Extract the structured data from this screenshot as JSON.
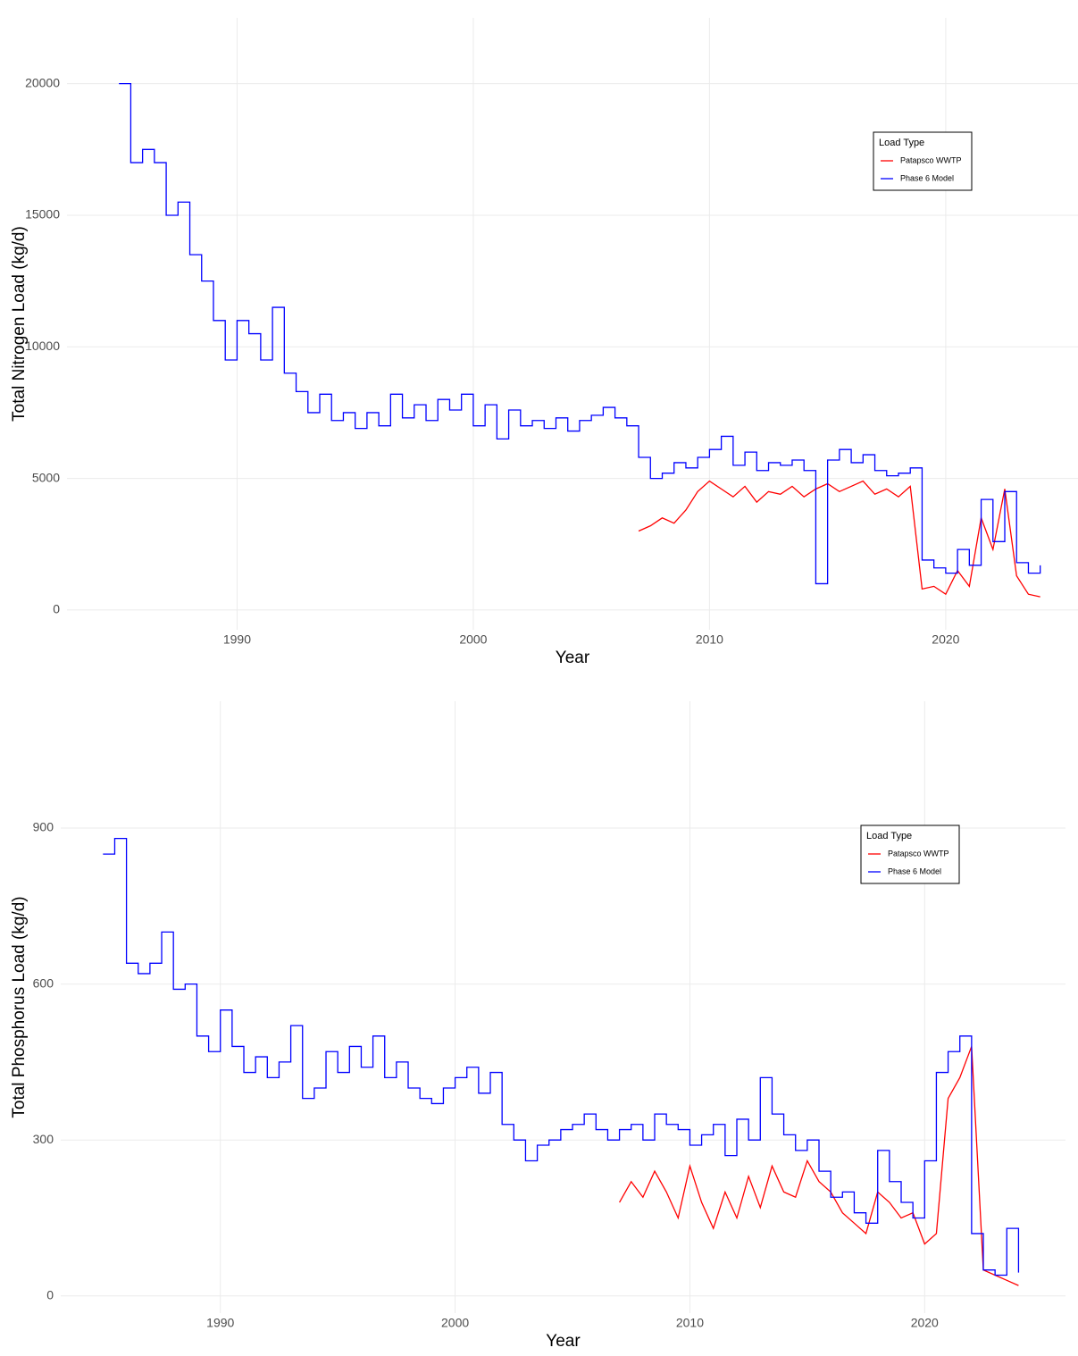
{
  "chart_data": [
    {
      "type": "line",
      "x_label": "Year",
      "y_label": "Total Nitrogen Load (kg/d)",
      "legend_title": "Load Type",
      "legend": "top-right",
      "grid": true,
      "line_shape": "step",
      "xlim": [
        1982.8,
        2025.6
      ],
      "xticks": [
        1990,
        2000,
        2010,
        2020
      ],
      "ylim": [
        -750,
        22500
      ],
      "yticks": [
        0,
        5000,
        10000,
        15000,
        20000
      ],
      "x": [
        1985,
        1985.5,
        1986,
        1986.5,
        1987,
        1987.5,
        1988,
        1988.5,
        1989,
        1989.5,
        1990,
        1990.5,
        1991,
        1991.5,
        1992,
        1992.5,
        1993,
        1993.5,
        1994,
        1994.5,
        1995,
        1995.5,
        1996,
        1996.5,
        1997,
        1997.5,
        1998,
        1998.5,
        1999,
        1999.5,
        2000,
        2000.5,
        2001,
        2001.5,
        2002,
        2002.5,
        2003,
        2003.5,
        2004,
        2004.5,
        2005,
        2005.5,
        2006,
        2006.5,
        2007,
        2007.5,
        2008,
        2008.5,
        2009,
        2009.5,
        2010,
        2010.5,
        2011,
        2011.5,
        2012,
        2012.5,
        2013,
        2013.5,
        2014,
        2014.5,
        2015,
        2015.5,
        2016,
        2016.5,
        2017,
        2017.5,
        2018,
        2018.5,
        2019,
        2019.5,
        2020,
        2020.5,
        2021,
        2021.5,
        2022,
        2022.5,
        2023,
        2023.5,
        2024
      ],
      "series": [
        {
          "name": "Patapsco WWTP",
          "color": "#ff0000",
          "shape": "linear",
          "values": [
            null,
            null,
            null,
            null,
            null,
            null,
            null,
            null,
            null,
            null,
            null,
            null,
            null,
            null,
            null,
            null,
            null,
            null,
            null,
            null,
            null,
            null,
            null,
            null,
            null,
            null,
            null,
            null,
            null,
            null,
            null,
            null,
            null,
            null,
            null,
            null,
            null,
            null,
            null,
            null,
            null,
            null,
            null,
            null,
            3000,
            3200,
            3500,
            3300,
            3800,
            4500,
            4900,
            4600,
            4300,
            4700,
            4100,
            4500,
            4400,
            4700,
            4300,
            4600,
            4800,
            4500,
            4700,
            4900,
            4400,
            4600,
            4300,
            4700,
            800,
            900,
            600,
            1500,
            900,
            3500,
            2300,
            4600,
            1300,
            600,
            500
          ]
        },
        {
          "name": "Phase 6 Model",
          "color": "#0000ff",
          "shape": "step",
          "values": [
            20000,
            17000,
            17500,
            17000,
            15000,
            15500,
            13500,
            12500,
            11000,
            9500,
            11000,
            10500,
            9500,
            11500,
            9000,
            8300,
            7500,
            8200,
            7200,
            7500,
            6900,
            7500,
            7000,
            8200,
            7300,
            7800,
            7200,
            8000,
            7600,
            8200,
            7000,
            7800,
            6500,
            7600,
            7000,
            7200,
            6900,
            7300,
            6800,
            7200,
            7400,
            7700,
            7300,
            7000,
            5800,
            5000,
            5200,
            5600,
            5400,
            5800,
            6100,
            6600,
            5500,
            6000,
            5300,
            5600,
            5500,
            5700,
            5300,
            1000,
            5700,
            6100,
            5600,
            5900,
            5300,
            5100,
            5200,
            5400,
            1900,
            1600,
            1400,
            2300,
            1700,
            4200,
            2600,
            4500,
            1800,
            1400,
            1700
          ]
        }
      ]
    },
    {
      "type": "line",
      "x_label": "Year",
      "y_label": "Total Phosphorus Load (kg/d)",
      "legend_title": "Load Type",
      "legend": "top-right",
      "grid": true,
      "line_shape": "step",
      "xlim": [
        1983.2,
        2026.0
      ],
      "xticks": [
        1990,
        2000,
        2010,
        2020
      ],
      "ylim": [
        -33,
        1144
      ],
      "yticks": [
        0,
        300,
        600,
        900
      ],
      "x": [
        1985,
        1985.5,
        1986,
        1986.5,
        1987,
        1987.5,
        1988,
        1988.5,
        1989,
        1989.5,
        1990,
        1990.5,
        1991,
        1991.5,
        1992,
        1992.5,
        1993,
        1993.5,
        1994,
        1994.5,
        1995,
        1995.5,
        1996,
        1996.5,
        1997,
        1997.5,
        1998,
        1998.5,
        1999,
        1999.5,
        2000,
        2000.5,
        2001,
        2001.5,
        2002,
        2002.5,
        2003,
        2003.5,
        2004,
        2004.5,
        2005,
        2005.5,
        2006,
        2006.5,
        2007,
        2007.5,
        2008,
        2008.5,
        2009,
        2009.5,
        2010,
        2010.5,
        2011,
        2011.5,
        2012,
        2012.5,
        2013,
        2013.5,
        2014,
        2014.5,
        2015,
        2015.5,
        2016,
        2016.5,
        2017,
        2017.5,
        2018,
        2018.5,
        2019,
        2019.5,
        2020,
        2020.5,
        2021,
        2021.5,
        2022,
        2022.5,
        2023,
        2023.5,
        2024
      ],
      "series": [
        {
          "name": "Patapsco WWTP",
          "color": "#ff0000",
          "shape": "linear",
          "values": [
            null,
            null,
            null,
            null,
            null,
            null,
            null,
            null,
            null,
            null,
            null,
            null,
            null,
            null,
            null,
            null,
            null,
            null,
            null,
            null,
            null,
            null,
            null,
            null,
            null,
            null,
            null,
            null,
            null,
            null,
            null,
            null,
            null,
            null,
            null,
            null,
            null,
            null,
            null,
            null,
            null,
            null,
            null,
            null,
            180,
            220,
            190,
            240,
            200,
            150,
            250,
            180,
            130,
            200,
            150,
            230,
            170,
            250,
            200,
            190,
            260,
            220,
            200,
            160,
            140,
            120,
            200,
            180,
            150,
            160,
            100,
            120,
            380,
            420,
            480,
            50,
            40,
            30,
            20
          ]
        },
        {
          "name": "Phase 6 Model",
          "color": "#0000ff",
          "shape": "step",
          "values": [
            850,
            880,
            640,
            620,
            640,
            700,
            590,
            600,
            500,
            470,
            550,
            480,
            430,
            460,
            420,
            450,
            520,
            380,
            400,
            470,
            430,
            480,
            440,
            500,
            420,
            450,
            400,
            380,
            370,
            400,
            420,
            440,
            390,
            430,
            330,
            300,
            260,
            290,
            300,
            320,
            330,
            350,
            320,
            300,
            320,
            330,
            300,
            350,
            330,
            320,
            290,
            310,
            330,
            270,
            340,
            300,
            420,
            350,
            310,
            280,
            300,
            240,
            190,
            200,
            160,
            140,
            280,
            220,
            180,
            150,
            260,
            430,
            470,
            500,
            120,
            50,
            40,
            130,
            45
          ]
        }
      ]
    }
  ]
}
